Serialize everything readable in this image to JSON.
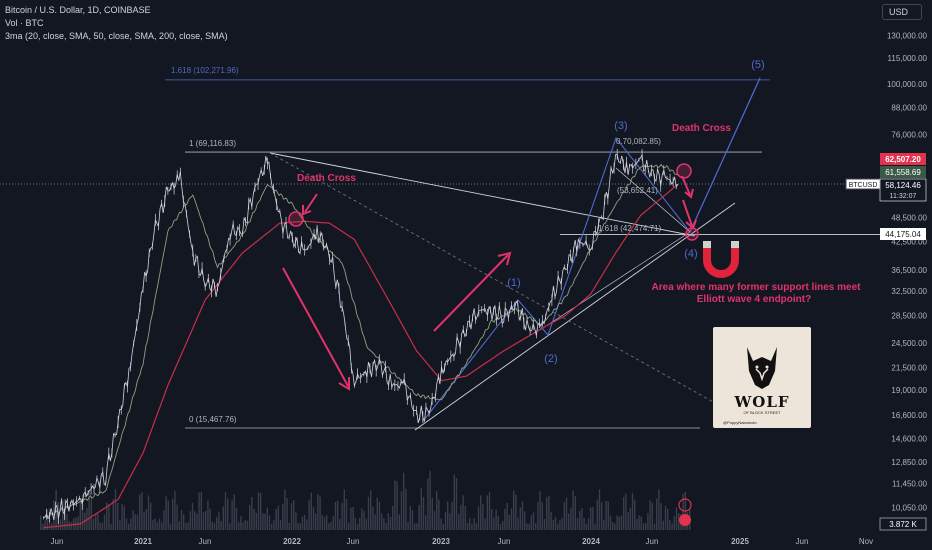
{
  "header": {
    "title": "Bitcoin / U.S. Dollar, 1D, COINBASE",
    "vol": "Vol · BTC",
    "ma": "3ma (20, close, SMA, 50, close, SMA, 200, close, SMA)"
  },
  "currency_button": "USD",
  "colors": {
    "background": "#131722",
    "price_line": "#d1d4dc",
    "ma200": "#c62e4a",
    "ma_short": "#8fa082",
    "wave_blue": "#4f6ac9",
    "annotation_pink": "#e0336b",
    "label_red": "#e2324f",
    "label_green": "#3a5a48"
  },
  "chart_data": {
    "type": "line",
    "symbol": "BTCUSD",
    "y_scale": "log",
    "ylim": [
      9500,
      170000
    ],
    "x_ticks": [
      "Jun",
      "2021",
      "Jun",
      "2022",
      "Jun",
      "2023",
      "Jun",
      "2024",
      "Jun",
      "2025",
      "Jun",
      "Nov"
    ],
    "y_ticks": [
      "130,000.00",
      "115,000.00",
      "100,000.00",
      "88,000.00",
      "76,000.00",
      "48,500.00",
      "42,500.00",
      "36,500.00",
      "32,500.00",
      "28,500.00",
      "24,500.00",
      "21,500.00",
      "19,000.00",
      "16,600.00",
      "14,600.00",
      "12,850.00",
      "11,450.00",
      "10,050.00"
    ],
    "price_labels": {
      "last_red": "62,507.20",
      "green": "61,558.69",
      "btcusd_label": "BTCUSD",
      "btcusd_value": "58,124.46",
      "countdown": "11:32:07",
      "level": "44,175.04",
      "volume": "3.872 K"
    },
    "series": [
      {
        "key": "price",
        "x": [
          "2020-05",
          "2020-08",
          "2020-10",
          "2020-11",
          "2020-12",
          "2021-01",
          "2021-02",
          "2021-03",
          "2021-04",
          "2021-05",
          "2021-06",
          "2021-07",
          "2021-08",
          "2021-09",
          "2021-10",
          "2021-11",
          "2021-12",
          "2022-01",
          "2022-02",
          "2022-03",
          "2022-04",
          "2022-05",
          "2022-06",
          "2022-07",
          "2022-08",
          "2022-09",
          "2022-10",
          "2022-11",
          "2022-12",
          "2023-01",
          "2023-02",
          "2023-03",
          "2023-04",
          "2023-06",
          "2023-07",
          "2023-08",
          "2023-09",
          "2023-10",
          "2023-11",
          "2023-12",
          "2024-01",
          "2024-02",
          "2024-03",
          "2024-04",
          "2024-05",
          "2024-06",
          "2024-07",
          "2024-08"
        ],
        "y": [
          9500,
          10500,
          12000,
          16000,
          22000,
          33000,
          46000,
          56000,
          60000,
          40000,
          34000,
          33000,
          45000,
          45000,
          57000,
          66000,
          48000,
          43000,
          40000,
          45000,
          40000,
          30000,
          20000,
          21000,
          22000,
          19500,
          19500,
          16500,
          16800,
          21000,
          23500,
          26500,
          29500,
          28500,
          30000,
          26500,
          26500,
          32000,
          37000,
          42500,
          41500,
          50000,
          68000,
          63000,
          66000,
          61000,
          60000,
          58100
        ]
      },
      {
        "key": "ma200",
        "x": [
          "2020-05",
          "2020-08",
          "2020-11",
          "2021-01",
          "2021-03",
          "2021-06",
          "2021-09",
          "2021-12",
          "2022-02",
          "2022-04",
          "2022-06",
          "2022-09",
          "2022-11",
          "2023-01",
          "2023-03",
          "2023-06",
          "2023-09",
          "2023-11",
          "2024-01",
          "2024-03",
          "2024-05",
          "2024-08"
        ],
        "y": [
          9000,
          9200,
          10500,
          13500,
          19500,
          31000,
          40000,
          47000,
          47500,
          47000,
          43000,
          30000,
          23500,
          20000,
          20500,
          23500,
          26500,
          28500,
          32000,
          40000,
          49000,
          58000
        ]
      },
      {
        "key": "ma_short",
        "x": [
          "2020-05",
          "2020-10",
          "2021-01",
          "2021-03",
          "2021-05",
          "2021-07",
          "2021-09",
          "2021-11",
          "2022-01",
          "2022-03",
          "2022-05",
          "2022-07",
          "2022-09",
          "2022-11",
          "2023-01",
          "2023-03",
          "2023-05",
          "2023-07",
          "2023-09",
          "2023-11",
          "2024-01",
          "2024-03",
          "2024-05",
          "2024-07",
          "2024-08"
        ],
        "y": [
          9500,
          11000,
          22000,
          45000,
          55000,
          37000,
          44000,
          58000,
          52000,
          43000,
          38000,
          24000,
          21000,
          18500,
          18000,
          22000,
          27500,
          29500,
          27000,
          31500,
          41000,
          52000,
          64000,
          64000,
          61000
        ]
      }
    ],
    "levels": [
      {
        "label": "1.618 (102,271.96)",
        "value": 102271.96
      },
      {
        "label": "1 (69,116.83)",
        "value": 69116.83
      },
      {
        "label": "0.70,082.85)",
        "value": 70082.85
      },
      {
        "label": "0 (15,467.76)",
        "value": 15467.76
      },
      {
        "label": "(53,652.41)",
        "value": 53652.41
      },
      {
        "label": "1.618 (42,474.71)",
        "value": 42474.71
      }
    ],
    "waves": [
      "(1)",
      "(2)",
      "(3)",
      "(4)",
      "(5)"
    ],
    "annotations": [
      "Death Cross",
      "Death Cross",
      "Area where many former support lines meet",
      "Elliott wave 4 endpoint?"
    ]
  },
  "logo": {
    "brand": "WOLF",
    "sub": "OF BLOCK STREET",
    "handle": "@PuppyNakamoto"
  }
}
